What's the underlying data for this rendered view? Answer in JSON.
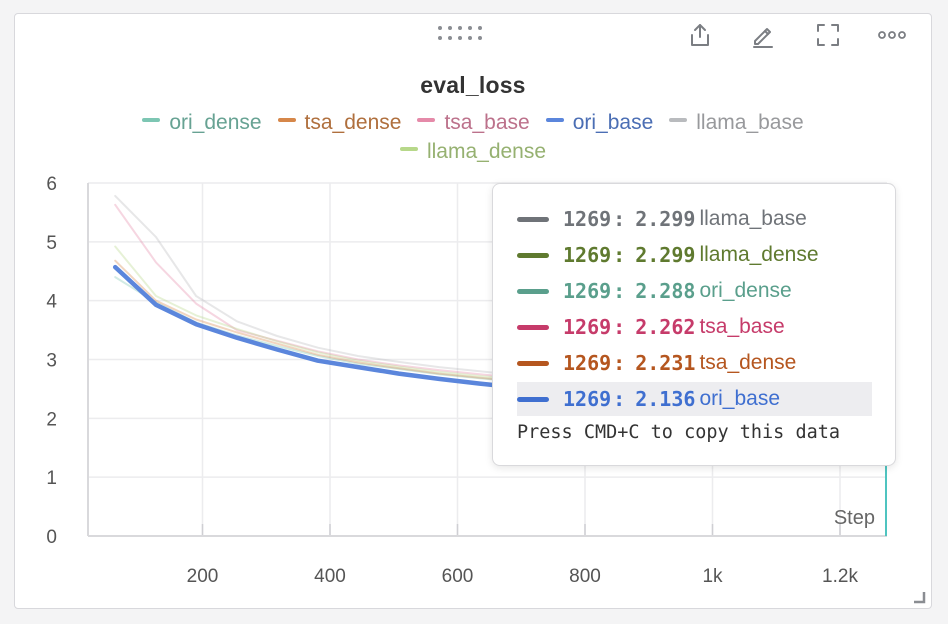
{
  "toolbar": {
    "drag_icon": "drag-dots-icon",
    "icons": [
      "share-icon",
      "pencil-icon",
      "fullscreen-icon",
      "more-icon"
    ]
  },
  "chart_data": {
    "type": "line",
    "title": "eval_loss",
    "xlabel": "Step",
    "ylabel": "",
    "xlim": [
      0,
      1260
    ],
    "ylim": [
      0,
      6
    ],
    "x_ticks": [
      200,
      400,
      600,
      800,
      1000,
      1200
    ],
    "x_tick_labels": [
      "200",
      "400",
      "600",
      "800",
      "1k",
      "1.2k"
    ],
    "y_ticks": [
      0,
      1,
      2,
      3,
      4,
      5,
      6
    ],
    "y_tick_labels": [
      "0",
      "1",
      "2",
      "3",
      "4",
      "5",
      "6"
    ],
    "grid": true,
    "legend_position": "top",
    "hover_step": 1269,
    "series": [
      {
        "name": "ori_dense",
        "color": "#7dc6b3",
        "x": [
          63,
          127,
          190,
          254,
          317,
          381,
          444,
          508,
          571,
          635,
          698
        ],
        "values": [
          4.4,
          3.97,
          3.63,
          3.41,
          3.23,
          3.06,
          2.93,
          2.84,
          2.75,
          2.68,
          2.62
        ]
      },
      {
        "name": "tsa_dense",
        "color": "#d6874a",
        "x": [
          63,
          127,
          190,
          254,
          317,
          381,
          444,
          508,
          571,
          635,
          698
        ],
        "values": [
          4.68,
          4.0,
          3.68,
          3.46,
          3.27,
          3.08,
          2.95,
          2.85,
          2.76,
          2.69,
          2.63
        ]
      },
      {
        "name": "tsa_base",
        "color": "#e58aa9",
        "x": [
          63,
          127,
          190,
          254,
          317,
          381,
          444,
          508,
          571,
          635,
          698
        ],
        "values": [
          5.63,
          4.65,
          3.95,
          3.5,
          3.32,
          3.14,
          3.0,
          2.9,
          2.82,
          2.75,
          2.68
        ]
      },
      {
        "name": "ori_base",
        "color": "#5b86dc",
        "x": [
          63,
          127,
          190,
          254,
          317,
          381,
          444,
          508,
          571,
          635,
          698
        ],
        "values": [
          4.57,
          3.93,
          3.6,
          3.37,
          3.17,
          2.98,
          2.87,
          2.76,
          2.67,
          2.59,
          2.52
        ]
      },
      {
        "name": "llama_base",
        "color": "#b9bbbe",
        "x": [
          63,
          127,
          190,
          254,
          317,
          381,
          444,
          508,
          571,
          635,
          698
        ],
        "values": [
          5.78,
          5.08,
          4.08,
          3.65,
          3.4,
          3.2,
          3.06,
          2.96,
          2.87,
          2.8,
          2.73
        ]
      },
      {
        "name": "llama_dense",
        "color": "#b7d88a",
        "x": [
          63,
          127,
          190,
          254,
          317,
          381,
          444,
          508,
          571,
          635,
          698
        ],
        "values": [
          4.92,
          4.08,
          3.75,
          3.52,
          3.31,
          3.12,
          2.98,
          2.88,
          2.79,
          2.72,
          2.66
        ]
      }
    ]
  },
  "tooltip": {
    "rows": [
      {
        "step": "1269",
        "sep": ":",
        "value": "2.299",
        "name": "llama_base",
        "color": "#6f7378"
      },
      {
        "step": "1269",
        "sep": ":",
        "value": "2.299",
        "name": "llama_dense",
        "color": "#5f7a2f"
      },
      {
        "step": "1269",
        "sep": ":",
        "value": "2.288",
        "name": "ori_dense",
        "color": "#5a9f8c"
      },
      {
        "step": "1269",
        "sep": ":",
        "value": "2.262",
        "name": "tsa_base",
        "color": "#c63b6a"
      },
      {
        "step": "1269",
        "sep": ":",
        "value": "2.231",
        "name": "tsa_dense",
        "color": "#b5561f"
      },
      {
        "step": "1269",
        "sep": ":",
        "value": "2.136",
        "name": "ori_base",
        "color": "#3f6fd0"
      }
    ],
    "footer": "Press CMD+C to copy this data"
  }
}
